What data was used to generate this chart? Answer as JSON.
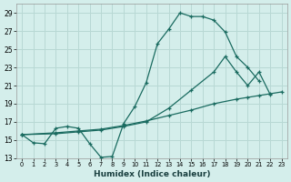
{
  "xlabel": "Humidex (Indice chaleur)",
  "background_color": "#d4eeeb",
  "grid_color": "#b8d8d4",
  "line_color": "#1a6b60",
  "xlim": [
    -0.5,
    23.5
  ],
  "ylim": [
    13,
    30
  ],
  "xticks": [
    0,
    1,
    2,
    3,
    4,
    5,
    6,
    7,
    8,
    9,
    10,
    11,
    12,
    13,
    14,
    15,
    16,
    17,
    18,
    19,
    20,
    21,
    22,
    23
  ],
  "yticks": [
    13,
    15,
    17,
    19,
    21,
    23,
    25,
    27,
    29
  ],
  "line1_x": [
    0,
    1,
    2,
    3,
    4,
    5,
    6,
    7,
    8,
    9,
    10,
    11,
    12,
    13,
    14,
    15,
    16,
    17,
    18,
    19,
    20,
    21
  ],
  "line1_y": [
    15.6,
    14.7,
    14.6,
    16.3,
    16.5,
    16.3,
    14.6,
    13.1,
    13.2,
    16.8,
    18.7,
    21.3,
    25.6,
    27.2,
    29.0,
    28.6,
    28.6,
    28.2,
    26.9,
    24.2,
    23.0,
    21.5
  ],
  "line2_x": [
    0,
    3,
    5,
    7,
    9,
    11,
    13,
    15,
    17,
    19,
    20,
    21,
    22,
    23
  ],
  "line2_y": [
    15.6,
    15.8,
    16.0,
    16.2,
    16.6,
    17.1,
    17.7,
    18.3,
    19.0,
    19.5,
    19.7,
    19.9,
    20.1,
    20.3
  ],
  "line3_x": [
    0,
    3,
    5,
    7,
    9,
    11,
    13,
    15,
    17,
    18,
    19,
    20,
    21,
    22
  ],
  "line3_y": [
    15.6,
    15.7,
    15.9,
    16.1,
    16.5,
    17.0,
    18.5,
    20.5,
    22.5,
    24.2,
    22.5,
    21.0,
    22.5,
    20.0
  ]
}
